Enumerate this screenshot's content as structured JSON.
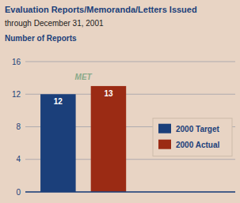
{
  "chart_data": {
    "type": "bar",
    "title": "Evaluation Reports/Memoranda/Letters Issued",
    "subtitle": "through December 31, 2001",
    "y_label": "Number of Reports",
    "categories": [
      "2000 Target",
      "2000 Actual"
    ],
    "values": [
      12,
      13
    ],
    "colors": [
      "#1b3f7a",
      "#9b2b14"
    ],
    "annotations": [
      "MET"
    ],
    "ylim": [
      0,
      16
    ],
    "yticks": [
      0,
      4,
      8,
      12,
      16
    ],
    "grid": true,
    "legend": "right",
    "data_labels": true,
    "tick_labels": "y"
  }
}
